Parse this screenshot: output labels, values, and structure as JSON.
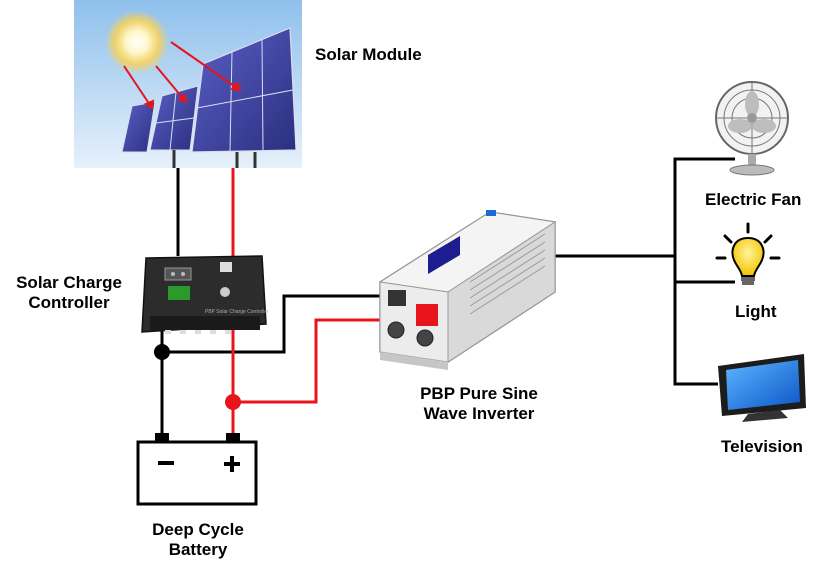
{
  "labels": {
    "solar_module": "Solar Module",
    "charge_controller_line1": "Solar Charge",
    "charge_controller_line2": "Controller",
    "inverter_line1": "PBP Pure Sine",
    "inverter_line2": "Wave Inverter",
    "battery_line1": "Deep Cycle",
    "battery_line2": "Battery",
    "fan": "Electric Fan",
    "light": "Light",
    "television": "Television"
  },
  "battery_terminals": {
    "negative": "−",
    "positive": "+"
  },
  "icons": [
    "solar-panel-icon",
    "sun-icon",
    "charge-controller-icon",
    "inverter-icon",
    "battery-icon",
    "fan-icon",
    "light-bulb-icon",
    "television-icon"
  ],
  "colors": {
    "positive_wire": "#e8141c",
    "negative_wire": "#000000",
    "panel_cell": "#3b3f9e",
    "sky": "#bcd9f2"
  }
}
